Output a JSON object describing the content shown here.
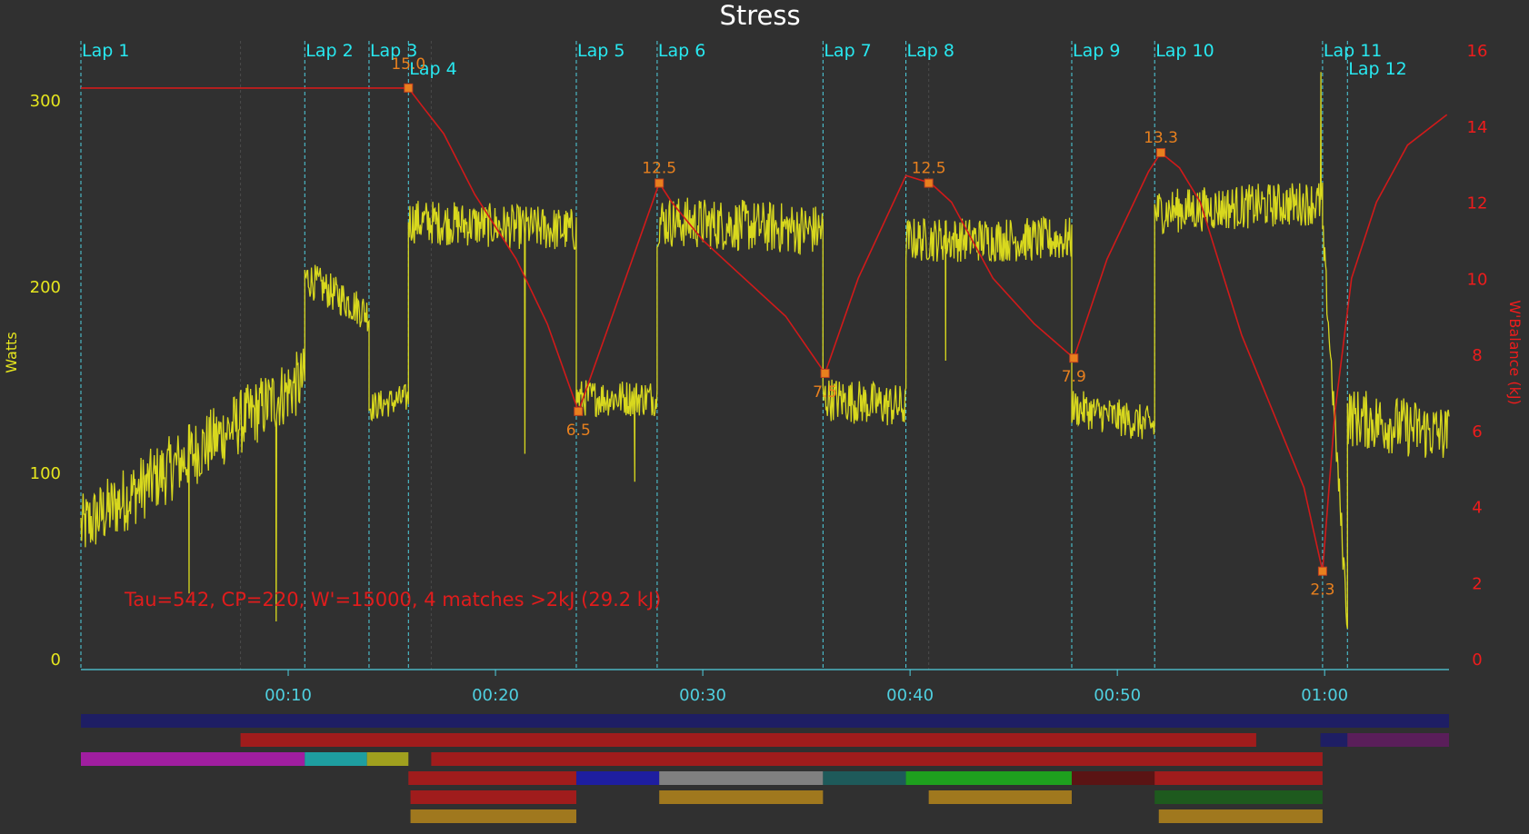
{
  "chart_data": {
    "type": "line",
    "title": "Stress",
    "ylabel_left": "Watts",
    "ylabel_right": "W'Balance (kJ)",
    "x_ticks": [
      "00:10",
      "00:20",
      "00:30",
      "00:40",
      "00:50",
      "01:00"
    ],
    "y_left_ticks": [
      "0",
      "100",
      "200",
      "300"
    ],
    "y_right_ticks": [
      "0",
      "2",
      "4",
      "6",
      "8",
      "10",
      "12",
      "14",
      "16"
    ],
    "ylim_left": [
      0,
      335
    ],
    "ylim_right": [
      0,
      16
    ],
    "xlim_minutes": [
      0,
      66
    ],
    "annotation": "Tau=542, CP=220, W'=15000, 4 matches >2kJ (29.2 kJ)",
    "laps": [
      {
        "label": "Lap 1",
        "minute": 0.0,
        "row": 0
      },
      {
        "label": "Lap 2",
        "minute": 10.8,
        "row": 0
      },
      {
        "label": "Lap 3",
        "minute": 13.9,
        "row": 0
      },
      {
        "label": "Lap 4",
        "minute": 15.8,
        "row": 1
      },
      {
        "label": "Lap 5",
        "minute": 23.9,
        "row": 0
      },
      {
        "label": "Lap 6",
        "minute": 27.8,
        "row": 0
      },
      {
        "label": "Lap 7",
        "minute": 35.8,
        "row": 0
      },
      {
        "label": "Lap 8",
        "minute": 39.8,
        "row": 0
      },
      {
        "label": "Lap 9",
        "minute": 47.8,
        "row": 0
      },
      {
        "label": "Lap 10",
        "minute": 51.8,
        "row": 0
      },
      {
        "label": "Lap 11",
        "minute": 59.9,
        "row": 0
      },
      {
        "label": "Lap 12",
        "minute": 61.1,
        "row": 1
      }
    ],
    "wbal_series": {
      "name": "W'Balance",
      "color": "#d11a1a",
      "points": [
        [
          0,
          15.0
        ],
        [
          15.8,
          15.0
        ],
        [
          16.5,
          14.5
        ],
        [
          17.5,
          13.8
        ],
        [
          19,
          12.2
        ],
        [
          21,
          10.5
        ],
        [
          22.5,
          8.8
        ],
        [
          24,
          6.5
        ],
        [
          25.5,
          8.8
        ],
        [
          27.9,
          12.5
        ],
        [
          28.5,
          12.0
        ],
        [
          30,
          11.0
        ],
        [
          32,
          10.0
        ],
        [
          34,
          9.0
        ],
        [
          35.9,
          7.5
        ],
        [
          37.5,
          10.0
        ],
        [
          39.8,
          12.7
        ],
        [
          41,
          12.5
        ],
        [
          42,
          12.0
        ],
        [
          44,
          10.0
        ],
        [
          46,
          8.8
        ],
        [
          47.9,
          7.9
        ],
        [
          49.5,
          10.5
        ],
        [
          51.5,
          12.8
        ],
        [
          52.1,
          13.3
        ],
        [
          53,
          12.9
        ],
        [
          54,
          12.0
        ],
        [
          56,
          8.5
        ],
        [
          57.5,
          6.5
        ],
        [
          59,
          4.5
        ],
        [
          59.9,
          2.3
        ],
        [
          60.5,
          6.5
        ],
        [
          61.3,
          10.0
        ],
        [
          62.5,
          12.0
        ],
        [
          64,
          13.5
        ],
        [
          65.9,
          14.3
        ]
      ]
    },
    "wbal_markers": [
      {
        "minute": 15.8,
        "value": 15.0,
        "label": "15.0"
      },
      {
        "minute": 24.0,
        "value": 6.5,
        "label": "6.5"
      },
      {
        "minute": 27.9,
        "value": 12.5,
        "label": "12.5"
      },
      {
        "minute": 35.9,
        "value": 7.5,
        "label": "7.5"
      },
      {
        "minute": 40.9,
        "value": 12.5,
        "label": "12.5"
      },
      {
        "minute": 47.9,
        "value": 7.9,
        "label": "7.9"
      },
      {
        "minute": 52.1,
        "value": 13.3,
        "label": "13.3"
      },
      {
        "minute": 59.9,
        "value": 2.3,
        "label": "2.3"
      }
    ],
    "watts_series": {
      "name": "Watts",
      "color": "#d8d81e",
      "segments": [
        {
          "from": 0.0,
          "to": 10.8,
          "start": 70,
          "end": 150,
          "noise": 18
        },
        {
          "from": 10.8,
          "to": 13.9,
          "start": 205,
          "end": 185,
          "noise": 10
        },
        {
          "from": 13.9,
          "to": 15.8,
          "start": 135,
          "end": 140,
          "noise": 8
        },
        {
          "from": 15.8,
          "to": 23.9,
          "start": 235,
          "end": 230,
          "noise": 12
        },
        {
          "from": 23.9,
          "to": 27.8,
          "start": 140,
          "end": 140,
          "noise": 10
        },
        {
          "from": 27.8,
          "to": 35.8,
          "start": 235,
          "end": 230,
          "noise": 14
        },
        {
          "from": 35.8,
          "to": 39.8,
          "start": 140,
          "end": 135,
          "noise": 12
        },
        {
          "from": 39.8,
          "to": 47.8,
          "start": 225,
          "end": 225,
          "noise": 12
        },
        {
          "from": 47.8,
          "to": 51.8,
          "start": 135,
          "end": 125,
          "noise": 10
        },
        {
          "from": 51.8,
          "to": 59.9,
          "start": 240,
          "end": 245,
          "noise": 12
        },
        {
          "from": 59.9,
          "to": 61.1,
          "start": 230,
          "end": 20,
          "noise": 10
        },
        {
          "from": 61.1,
          "to": 66.0,
          "start": 130,
          "end": 120,
          "noise": 16
        }
      ],
      "spikes": [
        {
          "minute": 5.2,
          "value": 35
        },
        {
          "minute": 9.4,
          "value": 20
        },
        {
          "minute": 21.4,
          "value": 110
        },
        {
          "minute": 26.7,
          "value": 95
        },
        {
          "minute": 41.7,
          "value": 160
        },
        {
          "minute": 59.8,
          "value": 315
        }
      ]
    },
    "zone_rows": [
      [
        {
          "from": 0.0,
          "to": 66.0,
          "color": "#1e1e64"
        }
      ],
      [
        {
          "from": 7.7,
          "to": 56.7,
          "color": "#a01c1c"
        },
        {
          "from": 59.8,
          "to": 61.1,
          "color": "#1e1e64"
        },
        {
          "from": 61.1,
          "to": 66.0,
          "color": "#5a1e5a"
        }
      ],
      [
        {
          "from": 0.0,
          "to": 10.8,
          "color": "#a01ea0"
        },
        {
          "from": 10.8,
          "to": 13.8,
          "color": "#1e9ea0"
        },
        {
          "from": 13.8,
          "to": 15.8,
          "color": "#a0a01e"
        },
        {
          "from": 16.9,
          "to": 59.9,
          "color": "#a01c1c"
        }
      ],
      [
        {
          "from": 15.8,
          "to": 23.9,
          "color": "#a01c1c"
        },
        {
          "from": 23.9,
          "to": 27.9,
          "color": "#1e1ea0"
        },
        {
          "from": 27.9,
          "to": 35.8,
          "color": "#808080"
        },
        {
          "from": 35.8,
          "to": 39.8,
          "color": "#1e5a5a"
        },
        {
          "from": 39.8,
          "to": 47.8,
          "color": "#1ea01e"
        },
        {
          "from": 47.8,
          "to": 51.8,
          "color": "#5a1414"
        },
        {
          "from": 51.8,
          "to": 59.9,
          "color": "#a01c1c"
        }
      ],
      [
        {
          "from": 15.9,
          "to": 23.9,
          "color": "#a01c1c"
        },
        {
          "from": 27.9,
          "to": 35.8,
          "color": "#a0781e"
        },
        {
          "from": 40.9,
          "to": 47.8,
          "color": "#a0781e"
        },
        {
          "from": 51.8,
          "to": 59.9,
          "color": "#1e5a1e"
        }
      ],
      [
        {
          "from": 15.9,
          "to": 23.9,
          "color": "#a0781e"
        },
        {
          "from": 52.0,
          "to": 59.9,
          "color": "#a0781e"
        }
      ]
    ]
  },
  "colors": {
    "background": "#303030",
    "lap_line": "#4fd0e0",
    "lap_label": "#28e8f0",
    "left_axis": "#e6e61e",
    "right_axis": "#ee1c1c",
    "x_axis": "#4fd0e0",
    "marker": "#e8801e",
    "title": "#ffffff"
  }
}
